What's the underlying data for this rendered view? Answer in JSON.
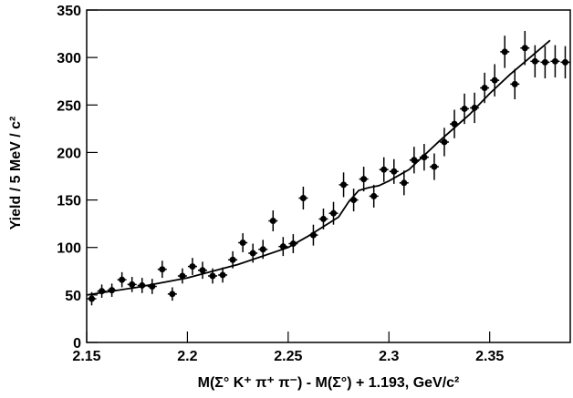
{
  "chart_data": {
    "type": "scatter",
    "x_label": "M(Σ° K⁺ π⁺ π⁻) - M(Σ°) + 1.193, GeV/c²",
    "y_label": "Yield / 5 MeV / c²",
    "x": [
      2.1525,
      2.1575,
      2.1625,
      2.1675,
      2.1725,
      2.1775,
      2.1825,
      2.1875,
      2.1925,
      2.1975,
      2.2025,
      2.2075,
      2.2125,
      2.2175,
      2.2225,
      2.2275,
      2.2325,
      2.2375,
      2.2425,
      2.2475,
      2.2525,
      2.2575,
      2.2625,
      2.2675,
      2.2725,
      2.2775,
      2.2825,
      2.2875,
      2.2925,
      2.2975,
      2.3025,
      2.3075,
      2.3125,
      2.3175,
      2.3225,
      2.3275,
      2.3325,
      2.3375,
      2.3425,
      2.3475,
      2.3525,
      2.3575,
      2.3625,
      2.3675,
      2.3725,
      2.3775,
      2.3825,
      2.3875
    ],
    "values": [
      46,
      54,
      55,
      66,
      61,
      60,
      59,
      77,
      51,
      70,
      80,
      76,
      70,
      71,
      87,
      105,
      94,
      98,
      128,
      101,
      104,
      152,
      113,
      130,
      136,
      166,
      150,
      172,
      154,
      182,
      180,
      168,
      192,
      195,
      185,
      211,
      230,
      246,
      247,
      268,
      276,
      306,
      272,
      310,
      296,
      295,
      296,
      295
    ],
    "errors": [
      7,
      7,
      7,
      8,
      8,
      8,
      8,
      9,
      7,
      8,
      9,
      9,
      8,
      8,
      9,
      10,
      10,
      10,
      11,
      10,
      10,
      12,
      11,
      11,
      12,
      13,
      12,
      13,
      12,
      13,
      13,
      13,
      14,
      14,
      14,
      15,
      15,
      16,
      16,
      16,
      17,
      17,
      16,
      18,
      17,
      17,
      17,
      17
    ],
    "fit": {
      "x": [
        2.15,
        2.175,
        2.2,
        2.225,
        2.25,
        2.26,
        2.275,
        2.28,
        2.285,
        2.29,
        2.295,
        2.3,
        2.31,
        2.325,
        2.34,
        2.35,
        2.36,
        2.37,
        2.38
      ],
      "values": [
        50,
        58,
        68,
        82,
        100,
        112,
        132,
        148,
        160,
        163,
        165,
        170,
        182,
        212,
        240,
        262,
        282,
        300,
        318
      ]
    },
    "color": "#000000",
    "xlim": [
      2.15,
      2.39
    ],
    "ylim": [
      0,
      350
    ],
    "xticks": [
      2.15,
      2.2,
      2.25,
      2.3,
      2.35
    ],
    "yticks": [
      0,
      50,
      100,
      150,
      200,
      250,
      300,
      350
    ]
  }
}
